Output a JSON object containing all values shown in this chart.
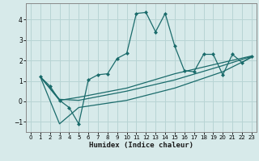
{
  "xlabel": "Humidex (Indice chaleur)",
  "background_color": "#d7eaea",
  "line_color": "#1a6b6b",
  "grid_color": "#b8d4d4",
  "xlim": [
    -0.5,
    23.5
  ],
  "ylim": [
    -1.5,
    4.8
  ],
  "yticks": [
    -1,
    0,
    1,
    2,
    3,
    4
  ],
  "xticks": [
    0,
    1,
    2,
    3,
    4,
    5,
    6,
    7,
    8,
    9,
    10,
    11,
    12,
    13,
    14,
    15,
    16,
    17,
    18,
    19,
    20,
    21,
    22,
    23
  ],
  "lines": [
    {
      "x": [
        1,
        2,
        3,
        4,
        5,
        6,
        7,
        8,
        9,
        10,
        11,
        12,
        13,
        14,
        15,
        16,
        17,
        18,
        19,
        20,
        21,
        22,
        23
      ],
      "y": [
        1.2,
        0.75,
        0.05,
        -0.3,
        -1.1,
        1.05,
        1.3,
        1.35,
        2.1,
        2.35,
        4.3,
        4.35,
        3.4,
        4.3,
        2.7,
        1.5,
        1.45,
        2.3,
        2.3,
        1.3,
        2.3,
        1.9,
        2.2
      ],
      "marker": true
    },
    {
      "x": [
        1,
        3,
        5,
        10,
        15,
        20,
        23
      ],
      "y": [
        1.2,
        0.1,
        0.05,
        0.5,
        1.05,
        1.75,
        2.2
      ],
      "marker": false
    },
    {
      "x": [
        1,
        3,
        5,
        10,
        15,
        20,
        23
      ],
      "y": [
        1.2,
        -1.1,
        -0.3,
        0.05,
        0.65,
        1.45,
        2.15
      ],
      "marker": false
    },
    {
      "x": [
        1,
        3,
        5,
        10,
        15,
        20,
        23
      ],
      "y": [
        1.2,
        0.05,
        0.2,
        0.65,
        1.35,
        1.9,
        2.22
      ],
      "marker": false
    }
  ]
}
